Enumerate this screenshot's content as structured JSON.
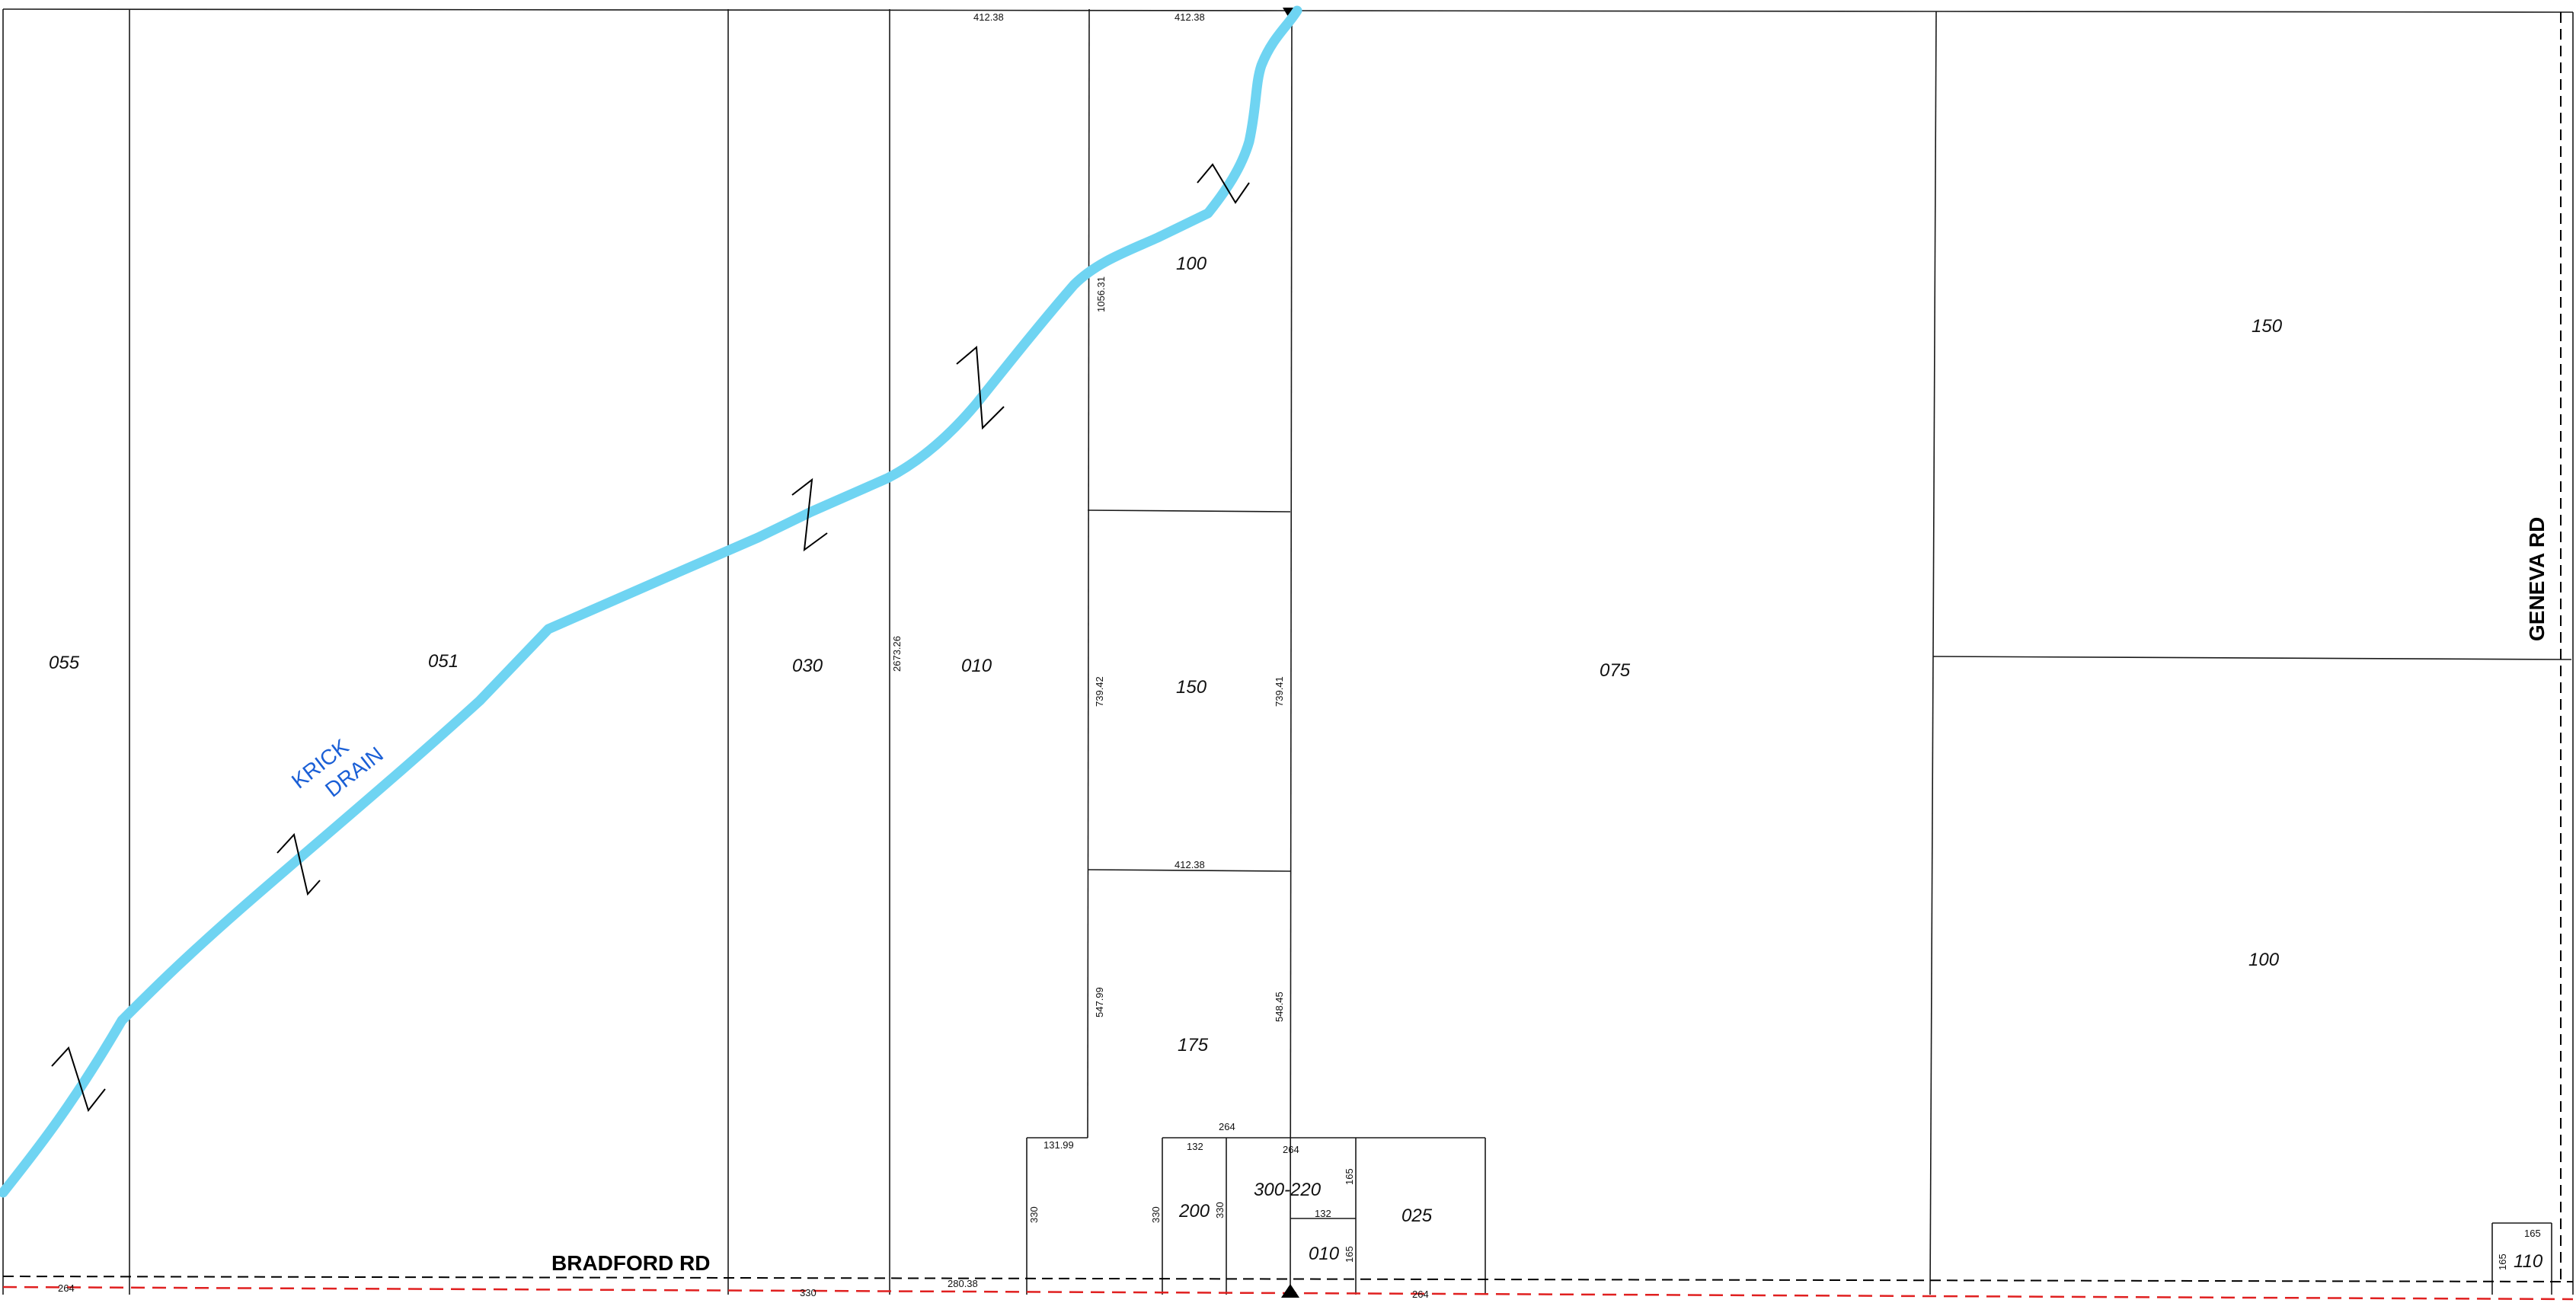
{
  "roads": {
    "bradford": "BRADFORD RD",
    "geneva": "GENEVA RD"
  },
  "drain": {
    "line1": "KRICK",
    "line2": "DRAIN",
    "color": "#6fd4f2"
  },
  "parcels": {
    "p055": "055",
    "p051": "051",
    "p030": "030",
    "p010w": "010",
    "p100w": "100",
    "p150w": "150",
    "p175": "175",
    "p075": "075",
    "p150e": "150",
    "p100e": "100",
    "p200": "200",
    "p300_220": "300-220",
    "p025": "025",
    "p010s": "010",
    "p110": "110"
  },
  "dims": {
    "top_a": "412.38",
    "top_b": "412.38",
    "d1056": "1056.31",
    "d2673": "2673.26",
    "d739a": "739.42",
    "d739b": "739.41",
    "mid412": "412.38",
    "d547": "547.99",
    "d548": "548.45",
    "d131": "131.99",
    "d264top": "264",
    "d132": "132",
    "d264b": "264",
    "d330a": "330",
    "d330b": "330",
    "d330c": "330",
    "d165a": "165",
    "d132b": "132",
    "d165b": "165",
    "bot264a": "264",
    "bot280": "280.38",
    "bot330": "330",
    "bot264b": "264",
    "d165c": "165",
    "d165d": "165"
  },
  "colors": {
    "lines": "#1a1a1a",
    "row_red": "#e02020"
  }
}
